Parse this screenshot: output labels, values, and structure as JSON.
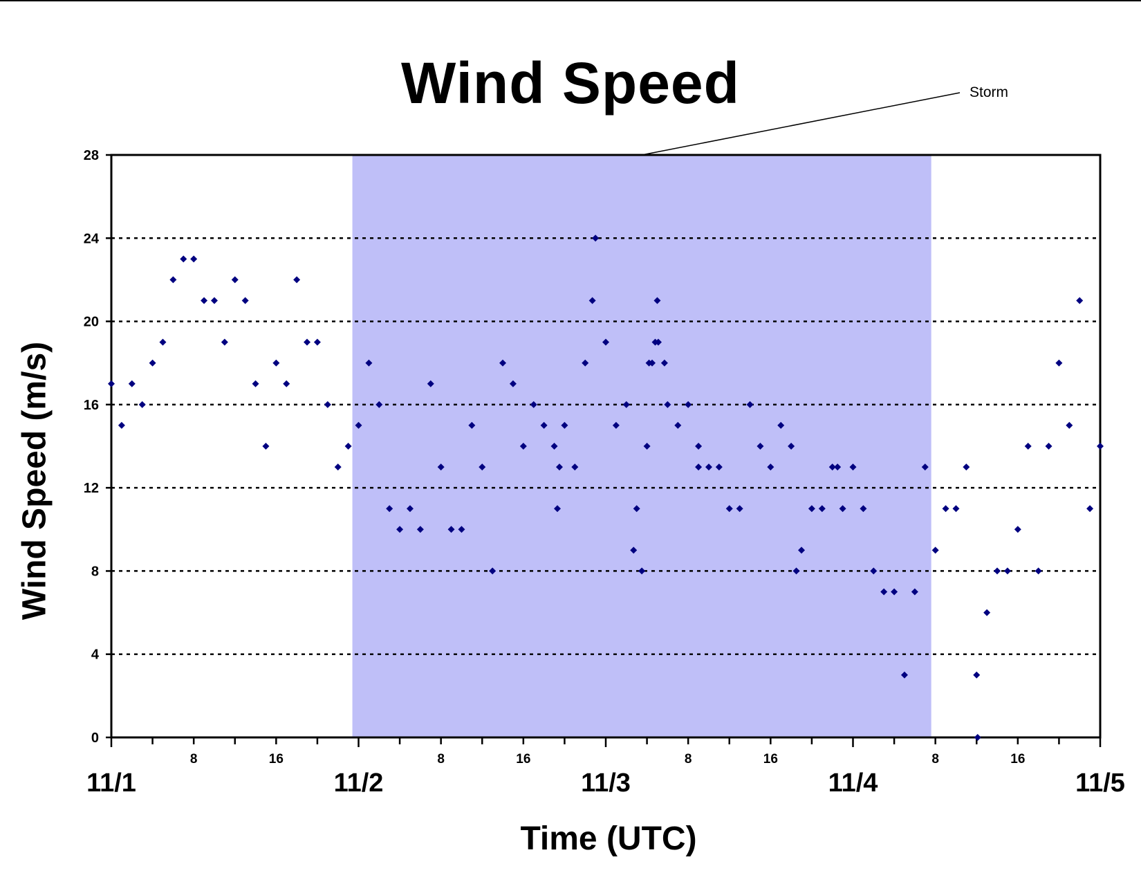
{
  "chart_data": {
    "type": "scatter",
    "title": "Wind Speed",
    "xlabel": "Time (UTC)",
    "ylabel": "Wind Speed (m/s)",
    "ylim": [
      0,
      28
    ],
    "y_ticks": [
      0,
      4,
      8,
      12,
      16,
      20,
      24,
      28
    ],
    "x_range_hours": [
      0,
      96
    ],
    "x_day_labels": [
      "11/1",
      "11/2",
      "11/3",
      "11/4",
      "11/5"
    ],
    "x_hour_labels": [
      "8",
      "16"
    ],
    "grid": "dotted horizontal",
    "shaded_region": {
      "label": "Storm",
      "x_start_hours": 23.4,
      "x_end_hours": 79.6,
      "color": "#bfbff8"
    },
    "marker_color": "#000080",
    "points_hours": [
      [
        0,
        17
      ],
      [
        1,
        15
      ],
      [
        2,
        17
      ],
      [
        3,
        16
      ],
      [
        4,
        18
      ],
      [
        5,
        19
      ],
      [
        6,
        22
      ],
      [
        7,
        23
      ],
      [
        8,
        23
      ],
      [
        9,
        21
      ],
      [
        10,
        21
      ],
      [
        11,
        19
      ],
      [
        12,
        22
      ],
      [
        13,
        21
      ],
      [
        14,
        17
      ],
      [
        15,
        14
      ],
      [
        16,
        18
      ],
      [
        17,
        17
      ],
      [
        18,
        22
      ],
      [
        19,
        19
      ],
      [
        20,
        19
      ],
      [
        21,
        16
      ],
      [
        22,
        13
      ],
      [
        23,
        14
      ],
      [
        24,
        15
      ],
      [
        25,
        18
      ],
      [
        26,
        16
      ],
      [
        27,
        11
      ],
      [
        28,
        10
      ],
      [
        29,
        11
      ],
      [
        30,
        10
      ],
      [
        31,
        17
      ],
      [
        32,
        13
      ],
      [
        33,
        10
      ],
      [
        34,
        10
      ],
      [
        35,
        15
      ],
      [
        36,
        13
      ],
      [
        37,
        8
      ],
      [
        38,
        18
      ],
      [
        39,
        17
      ],
      [
        40,
        14
      ],
      [
        41,
        16
      ],
      [
        42,
        15
      ],
      [
        43,
        14
      ],
      [
        43.3,
        11
      ],
      [
        43.5,
        13
      ],
      [
        44,
        15
      ],
      [
        45,
        13
      ],
      [
        46,
        18
      ],
      [
        46.7,
        21
      ],
      [
        47,
        24
      ],
      [
        48,
        19
      ],
      [
        49,
        15
      ],
      [
        50,
        16
      ],
      [
        50.7,
        9
      ],
      [
        51,
        11
      ],
      [
        51.5,
        8
      ],
      [
        52,
        14
      ],
      [
        52.2,
        18
      ],
      [
        52.5,
        18
      ],
      [
        52.8,
        19
      ],
      [
        53,
        21
      ],
      [
        53.1,
        19
      ],
      [
        53.7,
        18
      ],
      [
        54,
        16
      ],
      [
        55,
        15
      ],
      [
        56,
        16
      ],
      [
        57,
        14
      ],
      [
        57,
        13
      ],
      [
        58,
        13
      ],
      [
        59,
        13
      ],
      [
        60,
        11
      ],
      [
        61,
        11
      ],
      [
        62,
        16
      ],
      [
        63,
        14
      ],
      [
        64,
        13
      ],
      [
        65,
        15
      ],
      [
        66,
        14
      ],
      [
        66.5,
        8
      ],
      [
        67,
        9
      ],
      [
        68,
        11
      ],
      [
        69,
        11
      ],
      [
        70,
        13
      ],
      [
        70.5,
        13
      ],
      [
        71,
        11
      ],
      [
        72,
        13
      ],
      [
        73,
        11
      ],
      [
        74,
        8
      ],
      [
        75,
        7
      ],
      [
        76,
        7
      ],
      [
        77,
        3
      ],
      [
        78,
        7
      ],
      [
        79,
        13
      ],
      [
        80,
        9
      ],
      [
        81,
        11
      ],
      [
        82,
        11
      ],
      [
        83,
        13
      ],
      [
        84,
        3
      ],
      [
        84.1,
        0
      ],
      [
        85,
        6
      ],
      [
        86,
        8
      ],
      [
        87,
        8
      ],
      [
        88,
        10
      ],
      [
        89,
        14
      ],
      [
        90,
        8
      ],
      [
        91,
        14
      ],
      [
        92,
        18
      ],
      [
        93,
        15
      ],
      [
        94,
        21
      ],
      [
        95,
        11
      ],
      [
        96,
        14
      ]
    ]
  }
}
